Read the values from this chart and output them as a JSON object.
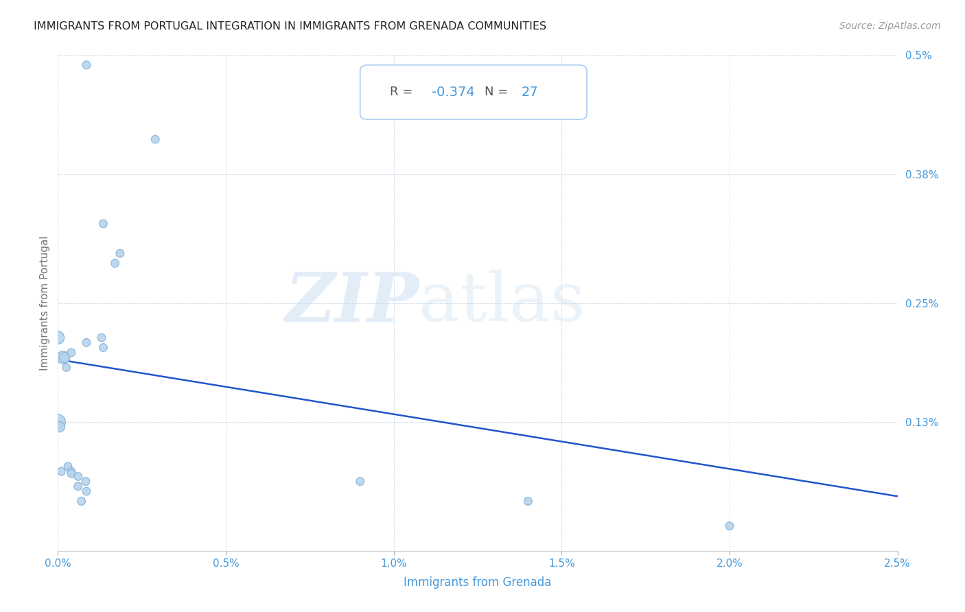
{
  "title": "IMMIGRANTS FROM PORTUGAL INTEGRATION IN IMMIGRANTS FROM GRENADA COMMUNITIES",
  "source": "Source: ZipAtlas.com",
  "xlabel": "Immigrants from Grenada",
  "ylabel": "Immigrants from Portugal",
  "watermark_zip": "ZIP",
  "watermark_atlas": "atlas",
  "R_label": "R = ",
  "R_val": "-0.374",
  "N_label": "N = ",
  "N_val": "27",
  "xlim": [
    0.0,
    0.025
  ],
  "ylim": [
    0.0,
    0.005
  ],
  "xtick_labels": [
    "0.0%",
    "0.5%",
    "1.0%",
    "1.5%",
    "2.0%",
    "2.5%"
  ],
  "xtick_values": [
    0.0,
    0.005,
    0.01,
    0.015,
    0.02,
    0.025
  ],
  "ytick_labels": [
    "0.13%",
    "0.25%",
    "0.38%",
    "0.5%"
  ],
  "ytick_values": [
    0.0013,
    0.0025,
    0.0038,
    0.005
  ],
  "scatter_color": "#b8d4ed",
  "scatter_edge_color": "#85b3d9",
  "line_color": "#2255cc",
  "title_color": "#222222",
  "axis_label_color": "#4499dd",
  "ylabel_color": "#777777",
  "background_color": "#ffffff",
  "grid_color": "#c8d8e8",
  "source_color": "#999999",
  "points": [
    [
      0.00085,
      0.0049
    ],
    [
      0.0029,
      0.00415
    ],
    [
      0.00135,
      0.0033
    ],
    [
      0.0017,
      0.0029
    ],
    [
      0.00185,
      0.003
    ],
    [
      0.00135,
      0.00205
    ],
    [
      0.0013,
      0.00215
    ],
    [
      0.00085,
      0.0021
    ],
    [
      0.0,
      0.00215
    ],
    [
      0.00015,
      0.00195
    ],
    [
      0.0002,
      0.00195
    ],
    [
      0.0004,
      0.002
    ],
    [
      0.00025,
      0.00185
    ],
    [
      0.0,
      0.0013
    ],
    [
      5e-05,
      0.00125
    ],
    [
      0.0001,
      0.0008
    ],
    [
      0.0003,
      0.00085
    ],
    [
      0.0004,
      0.0008
    ],
    [
      0.0004,
      0.00078
    ],
    [
      0.0006,
      0.00075
    ],
    [
      0.0006,
      0.00065
    ],
    [
      0.0007,
      0.0005
    ],
    [
      0.00085,
      0.0006
    ],
    [
      0.00083,
      0.0007
    ],
    [
      0.009,
      0.0007
    ],
    [
      0.014,
      0.0005
    ],
    [
      0.02,
      0.00025
    ]
  ],
  "point_sizes": [
    70,
    70,
    70,
    70,
    70,
    70,
    70,
    70,
    180,
    180,
    120,
    70,
    70,
    250,
    120,
    70,
    70,
    70,
    70,
    70,
    70,
    70,
    70,
    70,
    70,
    70,
    70
  ],
  "line_x": [
    0.0,
    0.025
  ],
  "line_y": [
    0.00193,
    0.00055
  ]
}
